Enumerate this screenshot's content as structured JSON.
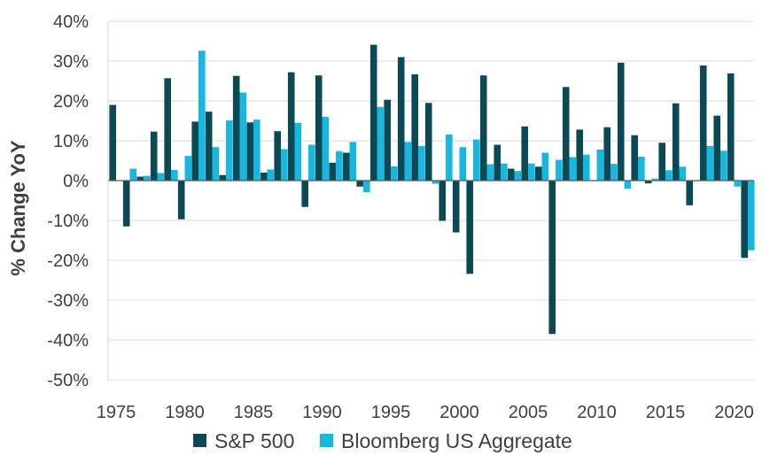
{
  "chart_data": {
    "type": "bar",
    "title": "",
    "xlabel": "",
    "ylabel": "% Change YoY",
    "ylim": [
      -50,
      40
    ],
    "yticks": [
      40,
      30,
      20,
      10,
      0,
      -10,
      -20,
      -30,
      -40,
      -50
    ],
    "ytick_labels": [
      "40%",
      "30%",
      "20%",
      "10%",
      "0%",
      "-10%",
      "-20%",
      "-30%",
      "-40%",
      "-50%"
    ],
    "xlim": [
      1975,
      2021
    ],
    "xticks": [
      1975,
      1980,
      1985,
      1990,
      1995,
      2000,
      2005,
      2010,
      2015,
      2020
    ],
    "xtick_labels": [
      "1975",
      "1980",
      "1985",
      "1990",
      "1995",
      "2000",
      "2005",
      "2010",
      "2015",
      "2020"
    ],
    "grid": true,
    "legend_position": "bottom",
    "categories": [
      1975,
      1976,
      1977,
      1978,
      1979,
      1980,
      1981,
      1982,
      1983,
      1984,
      1985,
      1986,
      1987,
      1988,
      1989,
      1990,
      1991,
      1992,
      1993,
      1994,
      1995,
      1996,
      1997,
      1998,
      1999,
      2000,
      2001,
      2002,
      2003,
      2004,
      2005,
      2006,
      2007,
      2008,
      2009,
      2010,
      2011,
      2012,
      2013,
      2014,
      2015,
      2016,
      2017,
      2018,
      2019,
      2020,
      2021
    ],
    "series": [
      {
        "name": "S&P 500",
        "color": "#0b4a55",
        "values": [
          19.0,
          -11.5,
          1.0,
          12.3,
          25.7,
          -9.7,
          14.8,
          17.3,
          1.4,
          26.3,
          14.6,
          2.0,
          12.4,
          27.2,
          -6.6,
          26.4,
          4.5,
          7.0,
          -1.5,
          34.1,
          20.3,
          31.0,
          26.7,
          19.5,
          -10.1,
          -13.0,
          -23.4,
          26.4,
          9.0,
          3.0,
          13.6,
          3.5,
          -38.5,
          23.5,
          12.8,
          0.0,
          13.4,
          29.6,
          11.4,
          -0.7,
          9.5,
          19.4,
          -6.2,
          28.9,
          16.3,
          26.9,
          -19.4
        ]
      },
      {
        "name": "Bloomberg US Aggregate",
        "color": "#17b7e0",
        "values": [
          null,
          3.0,
          1.2,
          1.9,
          2.7,
          6.2,
          32.6,
          8.4,
          15.1,
          22.1,
          15.3,
          2.8,
          7.9,
          14.5,
          9.0,
          16.0,
          7.4,
          9.7,
          -2.9,
          18.5,
          3.6,
          9.7,
          8.7,
          -0.8,
          11.6,
          8.4,
          10.3,
          4.1,
          4.3,
          2.4,
          4.3,
          7.0,
          5.2,
          5.9,
          6.5,
          7.8,
          4.2,
          -2.0,
          6.0,
          0.5,
          2.6,
          3.5,
          0.0,
          8.7,
          7.5,
          -1.5,
          -17.5
        ]
      }
    ]
  }
}
